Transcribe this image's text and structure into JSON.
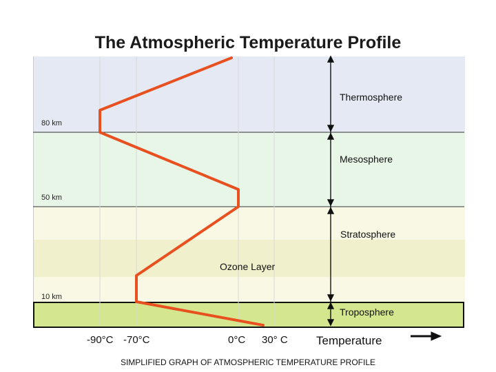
{
  "title": "The Atmospheric Temperature Profile",
  "caption": "SIMPLIFIED GRAPH OF ATMOSPHERIC TEMPERATURE PROFILE",
  "layers": {
    "thermosphere": "Thermosphere",
    "mesosphere": "Mesosphere",
    "stratosphere": "Stratosphere",
    "ozone": "Ozone Layer",
    "troposphere": "Troposphere"
  },
  "altitudes": {
    "km80": "80 km",
    "km50": "50 km",
    "km10": "10 km"
  },
  "temperatures": {
    "t1": "-90°C",
    "t2": "-70°C",
    "t3": "0°C",
    "t4": "30° C"
  },
  "axis_label": "Temperature",
  "colors": {
    "thermosphere": "#e4e9f4",
    "mesosphere": "#e8f6e8",
    "stratosphere": "#f8f8e4",
    "ozone": "#f0f0cc",
    "troposphere": "#d4e68e",
    "profile_line": "#e8501f"
  }
}
